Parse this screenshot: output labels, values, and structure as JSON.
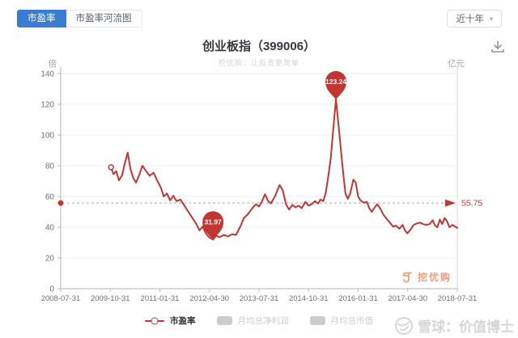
{
  "header": {
    "tabs": [
      {
        "label": "市盈率",
        "active": true
      },
      {
        "label": "市盈率河流图",
        "active": false
      }
    ],
    "range_select": {
      "value": "近十年",
      "caret": "▾"
    }
  },
  "title": {
    "text": "创业板指（399006）",
    "subtitle": "挖优购：让投资更简单"
  },
  "axis_units": {
    "left": "倍",
    "right": "亿元"
  },
  "legend": {
    "items": [
      {
        "label": "市盈率",
        "type": "line",
        "color": "#c23531",
        "enabled": true
      },
      {
        "label": "月均总净利润",
        "type": "rect",
        "color": "#cccccc",
        "enabled": false
      },
      {
        "label": "月均总市值",
        "type": "rect",
        "color": "#cccccc",
        "enabled": false
      }
    ]
  },
  "watermarks": {
    "brand": "挖优购",
    "xueqiu": "雪球：价值博士"
  },
  "colors": {
    "accent_blue": "#3a7cd2",
    "line_red": "#c23531",
    "brand_orange": "#f0855c",
    "disabled_gray": "#cccccc"
  },
  "chart_data": {
    "type": "line",
    "title": "创业板指（399006）",
    "xlabel": "",
    "ylabel": "倍",
    "ylabel_right": "亿元",
    "x_ticks": [
      "2008-07-31",
      "2009-10-31",
      "2011-01-31",
      "2012-04-30",
      "2013-07-31",
      "2014-10-31",
      "2016-01-31",
      "2017-04-30",
      "2018-07-31"
    ],
    "y_ticks": [
      0,
      20,
      40,
      60,
      80,
      100,
      120,
      140
    ],
    "ylim": [
      0,
      140
    ],
    "grid": "horizontal",
    "legend_position": "bottom",
    "reference_line": {
      "value": 55.75,
      "label": "55.75"
    },
    "annotations": [
      {
        "kind": "max",
        "x": 0.694,
        "value": 123.24,
        "label": "123.24"
      },
      {
        "kind": "min",
        "x": 0.384,
        "value": 31.97,
        "label": "31.97"
      }
    ],
    "hidden_series": [
      "月均总净利润",
      "月均总市值"
    ],
    "series": [
      {
        "name": "市盈率",
        "color": "#c23531",
        "points": [
          [
            0.127,
            79
          ],
          [
            0.133,
            74.5
          ],
          [
            0.14,
            76.5
          ],
          [
            0.147,
            70.5
          ],
          [
            0.155,
            74
          ],
          [
            0.162,
            82
          ],
          [
            0.169,
            88.5
          ],
          [
            0.176,
            78
          ],
          [
            0.183,
            72
          ],
          [
            0.19,
            69
          ],
          [
            0.198,
            74
          ],
          [
            0.206,
            80
          ],
          [
            0.214,
            77
          ],
          [
            0.224,
            73.5
          ],
          [
            0.234,
            75.5
          ],
          [
            0.244,
            70
          ],
          [
            0.252,
            66
          ],
          [
            0.26,
            60
          ],
          [
            0.268,
            62
          ],
          [
            0.276,
            57.5
          ],
          [
            0.284,
            60.5
          ],
          [
            0.292,
            57
          ],
          [
            0.302,
            58
          ],
          [
            0.312,
            54
          ],
          [
            0.322,
            50
          ],
          [
            0.332,
            46
          ],
          [
            0.342,
            42
          ],
          [
            0.35,
            38
          ],
          [
            0.358,
            40.5
          ],
          [
            0.366,
            36
          ],
          [
            0.374,
            33.5
          ],
          [
            0.384,
            31.97
          ],
          [
            0.392,
            34.5
          ],
          [
            0.4,
            33.5
          ],
          [
            0.412,
            35
          ],
          [
            0.422,
            34
          ],
          [
            0.432,
            35.5
          ],
          [
            0.442,
            35
          ],
          [
            0.452,
            40
          ],
          [
            0.462,
            46
          ],
          [
            0.472,
            48.5
          ],
          [
            0.482,
            52
          ],
          [
            0.492,
            55
          ],
          [
            0.5,
            53.5
          ],
          [
            0.508,
            57
          ],
          [
            0.515,
            61.5
          ],
          [
            0.523,
            57
          ],
          [
            0.53,
            55.5
          ],
          [
            0.54,
            60
          ],
          [
            0.552,
            67.5
          ],
          [
            0.56,
            64
          ],
          [
            0.568,
            55
          ],
          [
            0.576,
            51.5
          ],
          [
            0.584,
            54.5
          ],
          [
            0.592,
            53
          ],
          [
            0.6,
            54
          ],
          [
            0.608,
            52.5
          ],
          [
            0.617,
            56.5
          ],
          [
            0.625,
            54
          ],
          [
            0.633,
            55
          ],
          [
            0.641,
            57
          ],
          [
            0.649,
            55.5
          ],
          [
            0.655,
            58
          ],
          [
            0.662,
            57
          ],
          [
            0.668,
            62
          ],
          [
            0.674,
            72
          ],
          [
            0.681,
            85
          ],
          [
            0.687,
            103
          ],
          [
            0.694,
            123.24
          ],
          [
            0.7,
            108
          ],
          [
            0.706,
            92
          ],
          [
            0.712,
            76
          ],
          [
            0.718,
            62
          ],
          [
            0.724,
            58.5
          ],
          [
            0.73,
            62
          ],
          [
            0.738,
            71
          ],
          [
            0.744,
            69
          ],
          [
            0.75,
            60
          ],
          [
            0.756,
            57.5
          ],
          [
            0.764,
            56
          ],
          [
            0.772,
            56.5
          ],
          [
            0.778,
            52.5
          ],
          [
            0.784,
            50
          ],
          [
            0.792,
            53
          ],
          [
            0.798,
            55
          ],
          [
            0.806,
            52
          ],
          [
            0.814,
            48
          ],
          [
            0.822,
            45.5
          ],
          [
            0.83,
            43
          ],
          [
            0.838,
            40.5
          ],
          [
            0.846,
            41
          ],
          [
            0.854,
            39
          ],
          [
            0.862,
            41.5
          ],
          [
            0.868,
            38
          ],
          [
            0.874,
            36
          ],
          [
            0.882,
            38.5
          ],
          [
            0.89,
            41.5
          ],
          [
            0.898,
            42.5
          ],
          [
            0.906,
            43
          ],
          [
            0.914,
            42
          ],
          [
            0.922,
            41.5
          ],
          [
            0.93,
            42
          ],
          [
            0.938,
            44.5
          ],
          [
            0.944,
            41
          ],
          [
            0.95,
            40
          ],
          [
            0.956,
            45
          ],
          [
            0.962,
            42
          ],
          [
            0.968,
            46
          ],
          [
            0.974,
            44
          ],
          [
            0.98,
            40
          ],
          [
            0.988,
            41.5
          ],
          [
            1.0,
            39.5
          ]
        ]
      }
    ]
  }
}
